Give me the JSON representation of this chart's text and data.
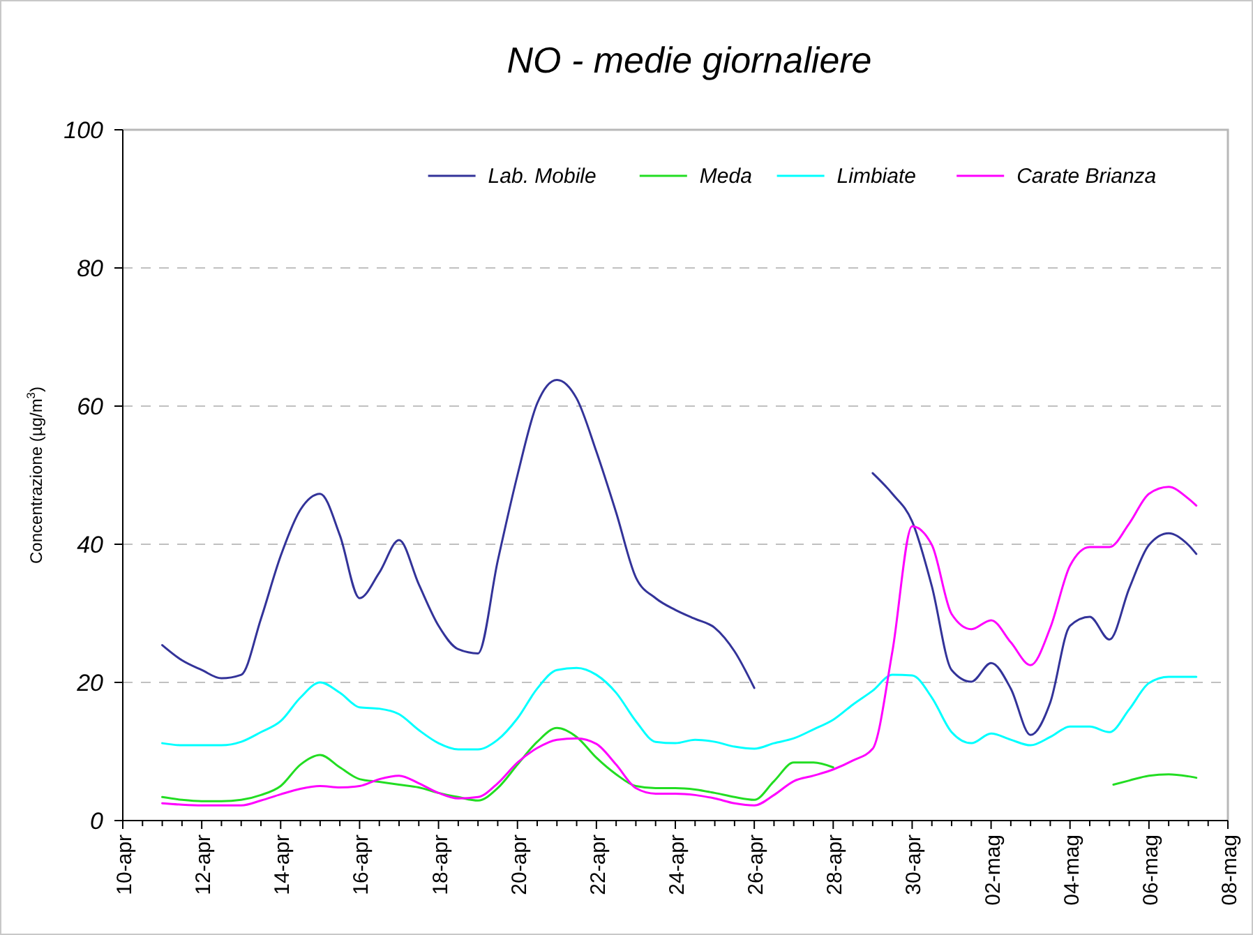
{
  "chart_data": {
    "type": "line",
    "title": "NO - medie giornaliere",
    "ylabel": "Concentrazione (µg/m$^{3}$)",
    "xlim": [
      "--04-10",
      "--05-08"
    ],
    "xticks": [
      {
        "value": "--04-10",
        "label": "10-apr"
      },
      {
        "value": "--04-10T12:00",
        "label": null
      },
      {
        "value": "--04-11",
        "label": null
      },
      {
        "value": "--04-11T12:00",
        "label": null
      },
      {
        "value": "--04-12",
        "label": "12-apr"
      },
      {
        "value": "--04-12T12:00",
        "label": null
      },
      {
        "value": "--04-13",
        "label": null
      },
      {
        "value": "--04-13T12:00",
        "label": null
      },
      {
        "value": "--04-14",
        "label": "14-apr"
      },
      {
        "value": "--04-14T12:00",
        "label": null
      },
      {
        "value": "--04-15",
        "label": null
      },
      {
        "value": "--04-15T12:00",
        "label": null
      },
      {
        "value": "--04-16",
        "label": "16-apr"
      },
      {
        "value": "--04-16T12:00",
        "label": null
      },
      {
        "value": "--04-17",
        "label": null
      },
      {
        "value": "--04-17T12:00",
        "label": null
      },
      {
        "value": "--04-18",
        "label": "18-apr"
      },
      {
        "value": "--04-18T12:00",
        "label": null
      },
      {
        "value": "--04-19",
        "label": null
      },
      {
        "value": "--04-19T12:00",
        "label": null
      },
      {
        "value": "--04-20",
        "label": "20-apr"
      },
      {
        "value": "--04-20T12:00",
        "label": null
      },
      {
        "value": "--04-21",
        "label": null
      },
      {
        "value": "--04-21T12:00",
        "label": null
      },
      {
        "value": "--04-22",
        "label": "22-apr"
      },
      {
        "value": "--04-22T12:00",
        "label": null
      },
      {
        "value": "--04-23",
        "label": null
      },
      {
        "value": "--04-23T12:00",
        "label": null
      },
      {
        "value": "--04-24",
        "label": "24-apr"
      },
      {
        "value": "--04-24T12:00",
        "label": null
      },
      {
        "value": "--04-25",
        "label": null
      },
      {
        "value": "--04-25T12:00",
        "label": null
      },
      {
        "value": "--04-26",
        "label": "26-apr"
      },
      {
        "value": "--04-26T12:00",
        "label": null
      },
      {
        "value": "--04-27",
        "label": null
      },
      {
        "value": "--04-27T12:00",
        "label": null
      },
      {
        "value": "--04-28",
        "label": "28-apr"
      },
      {
        "value": "--04-28T12:00",
        "label": null
      },
      {
        "value": "--04-29",
        "label": null
      },
      {
        "value": "--04-29T12:00",
        "label": null
      },
      {
        "value": "--04-30",
        "label": "30-apr"
      },
      {
        "value": "--04-30T12:00",
        "label": null
      },
      {
        "value": "--05-01",
        "label": null
      },
      {
        "value": "--05-01T12:00",
        "label": null
      },
      {
        "value": "--05-02",
        "label": "02-mag"
      },
      {
        "value": "--05-02T12:00",
        "label": null
      },
      {
        "value": "--05-03",
        "label": null
      },
      {
        "value": "--05-03T12:00",
        "label": null
      },
      {
        "value": "--05-04",
        "label": "04-mag"
      },
      {
        "value": "--05-04T12:00",
        "label": null
      },
      {
        "value": "--05-05",
        "label": null
      },
      {
        "value": "--05-05T12:00",
        "label": null
      },
      {
        "value": "--05-06",
        "label": "06-mag"
      },
      {
        "value": "--05-06T12:00",
        "label": null
      },
      {
        "value": "--05-07",
        "label": null
      },
      {
        "value": "--05-07T12:00",
        "label": null
      },
      {
        "value": "--05-08",
        "label": "08-mag"
      }
    ],
    "ylim": [
      0,
      100
    ],
    "yticks": [
      0,
      20,
      40,
      60,
      80,
      100
    ],
    "grid": "y",
    "legend": "top right",
    "marker": "none",
    "line_style": "solid",
    "series": [
      {
        "name": "Lab. Mobile",
        "color": "#333399",
        "x": [
          "--04-11",
          "--04-11T12:00",
          "--04-12",
          "--04-12T12:00",
          "--04-13",
          "--04-13T12:00",
          "--04-14",
          "--04-14T12:00",
          "--04-15",
          "--04-15T12:00",
          "--04-16",
          "--04-16T12:00",
          "--04-17",
          "--04-17T12:00",
          "--04-18",
          "--04-18T12:00",
          "--04-19",
          "--04-19T12:00",
          "--04-20",
          "--04-20T12:00",
          "--04-21",
          "--04-21T12:00",
          "--04-22",
          "--04-22T12:00",
          "--04-23",
          "--04-23T12:00",
          "--04-24",
          "--04-24T12:00",
          "--04-25",
          "--04-25T12:00",
          "--04-26",
          "--04-27T12:00",
          "--04-29",
          "--04-29T12:00",
          "--04-30",
          "--04-30T12:00",
          "--05-01",
          "--05-01T12:00",
          "--05-02",
          "--05-02T12:00",
          "--05-03",
          "--05-03T12:00",
          "--05-04",
          "--05-04T12:00",
          "--05-05",
          "--05-05T12:00",
          "--05-06",
          "--05-06T12:00",
          "--05-07",
          "--05-07T04:48"
        ],
        "values": [
          25.4,
          23.2,
          21.8,
          20.6,
          21.1,
          29.2,
          38.3,
          45,
          47.3,
          41.3,
          32.2,
          35.9,
          40.6,
          34.2,
          28.2,
          24.8,
          24.2,
          37.6,
          50,
          60.4,
          63.8,
          61.1,
          53.4,
          44.6,
          35.2,
          32.2,
          30.5,
          29.2,
          27.9,
          24.5,
          19.2,
          null,
          50.3,
          47.3,
          43.3,
          33.9,
          21.8,
          20.1,
          22.8,
          19.1,
          12.4,
          17.1,
          28.2,
          29.5,
          26.2,
          33.6,
          39.9,
          41.6,
          39.9,
          38.6
        ]
      },
      {
        "name": "Meda",
        "color": "#22dd22",
        "x": [
          "--04-11",
          "--04-11T12:00",
          "--04-12",
          "--04-12T12:00",
          "--04-13",
          "--04-13T12:00",
          "--04-14",
          "--04-14T12:00",
          "--04-15",
          "--04-15T12:00",
          "--04-16",
          "--04-16T12:00",
          "--04-17",
          "--04-17T12:00",
          "--04-18",
          "--04-18T12:00",
          "--04-19",
          "--04-19T12:00",
          "--04-20",
          "--04-20T12:00",
          "--04-21",
          "--04-21T12:00",
          "--04-22",
          "--04-22T12:00",
          "--04-23",
          "--04-23T12:00",
          "--04-24",
          "--04-24T12:00",
          "--04-25",
          "--04-25T12:00",
          "--04-26",
          "--04-26T12:00",
          "--04-27",
          "--04-27T12:00",
          "--04-28",
          "--05-01T12:00",
          "--05-05T02:24",
          "--05-05T12:00",
          "--05-06",
          "--05-06T12:00",
          "--05-07",
          "--05-07T04:48"
        ],
        "values": [
          3.4,
          3,
          2.8,
          2.8,
          3,
          3.7,
          5,
          8.1,
          9.5,
          7.7,
          6,
          5.6,
          5.2,
          4.8,
          4,
          3.4,
          2.9,
          4.7,
          8.1,
          11.4,
          13.4,
          12.1,
          9.1,
          6.7,
          5,
          4.7,
          4.7,
          4.5,
          4,
          3.4,
          3,
          5.7,
          8.4,
          8.4,
          7.7,
          null,
          5.2,
          5.8,
          6.5,
          6.7,
          6.4,
          6.2
        ]
      },
      {
        "name": "Limbiate",
        "color": "#00ffff",
        "x": [
          "--04-11",
          "--04-11T12:00",
          "--04-12",
          "--04-12T12:00",
          "--04-13",
          "--04-13T12:00",
          "--04-14",
          "--04-14T12:00",
          "--04-15",
          "--04-15T12:00",
          "--04-16",
          "--04-16T12:00",
          "--04-17",
          "--04-17T12:00",
          "--04-18",
          "--04-18T12:00",
          "--04-19",
          "--04-19T12:00",
          "--04-20",
          "--04-20T12:00",
          "--04-21",
          "--04-21T12:00",
          "--04-22",
          "--04-22T12:00",
          "--04-23",
          "--04-23T12:00",
          "--04-24",
          "--04-24T12:00",
          "--04-25",
          "--04-25T12:00",
          "--04-26",
          "--04-26T12:00",
          "--04-27",
          "--04-27T12:00",
          "--04-28",
          "--04-28T12:00",
          "--04-29",
          "--04-29T12:00",
          "--04-30",
          "--04-30T12:00",
          "--05-01",
          "--05-01T12:00",
          "--05-02",
          "--05-02T12:00",
          "--05-03",
          "--05-03T12:00",
          "--05-04",
          "--05-04T12:00",
          "--05-05",
          "--05-05T12:00",
          "--05-06",
          "--05-06T12:00",
          "--05-07",
          "--05-07T04:48"
        ],
        "values": [
          11.2,
          10.9,
          10.9,
          10.9,
          11.4,
          12.8,
          14.4,
          17.8,
          20,
          18.5,
          16.4,
          16.2,
          15.4,
          13.1,
          11.2,
          10.3,
          10.3,
          11.7,
          14.8,
          19.1,
          21.8,
          22.1,
          21.1,
          18.5,
          14.4,
          11.4,
          11.2,
          11.7,
          11.4,
          10.7,
          10.4,
          11.2,
          11.9,
          13.2,
          14.6,
          16.8,
          18.8,
          21.1,
          21,
          17.8,
          12.8,
          11.2,
          12.6,
          11.7,
          10.9,
          12.1,
          13.6,
          13.6,
          12.8,
          16.1,
          19.9,
          20.8,
          20.8,
          20.8
        ]
      },
      {
        "name": "Carate Brianza",
        "color": "#ff00ff",
        "x": [
          "--04-11",
          "--04-11T12:00",
          "--04-12",
          "--04-12T12:00",
          "--04-13",
          "--04-13T12:00",
          "--04-14",
          "--04-14T12:00",
          "--04-15",
          "--04-15T12:00",
          "--04-16",
          "--04-16T12:00",
          "--04-17",
          "--04-17T12:00",
          "--04-18",
          "--04-18T12:00",
          "--04-19",
          "--04-19T12:00",
          "--04-20",
          "--04-20T12:00",
          "--04-21",
          "--04-21T12:00",
          "--04-22",
          "--04-22T12:00",
          "--04-23",
          "--04-23T12:00",
          "--04-24",
          "--04-24T12:00",
          "--04-25",
          "--04-25T12:00",
          "--04-26",
          "--04-26T12:00",
          "--04-27",
          "--04-27T12:00",
          "--04-28",
          "--04-28T12:00",
          "--04-29",
          "--04-29T12:00",
          "--04-30",
          "--04-30T12:00",
          "--05-01",
          "--05-01T12:00",
          "--05-02",
          "--05-02T12:00",
          "--05-03",
          "--05-03T12:00",
          "--05-04",
          "--05-04T12:00",
          "--05-05",
          "--05-05T12:00",
          "--05-06",
          "--05-06T12:00",
          "--05-07",
          "--05-07T04:48"
        ],
        "values": [
          2.5,
          2.3,
          2.2,
          2.2,
          2.2,
          2.9,
          3.8,
          4.6,
          5,
          4.8,
          5,
          6,
          6.5,
          5.4,
          4,
          3.2,
          3.4,
          5.4,
          8.4,
          10.5,
          11.7,
          11.9,
          11.1,
          8.1,
          4.7,
          3.9,
          3.9,
          3.7,
          3.2,
          2.5,
          2.2,
          3.7,
          5.7,
          6.5,
          7.4,
          8.7,
          10.4,
          24.5,
          42.6,
          39.9,
          29.9,
          27.7,
          29,
          25.8,
          22.5,
          27.9,
          36.9,
          39.6,
          39.6,
          43,
          47.3,
          48.3,
          46.6,
          45.6
        ]
      }
    ]
  }
}
